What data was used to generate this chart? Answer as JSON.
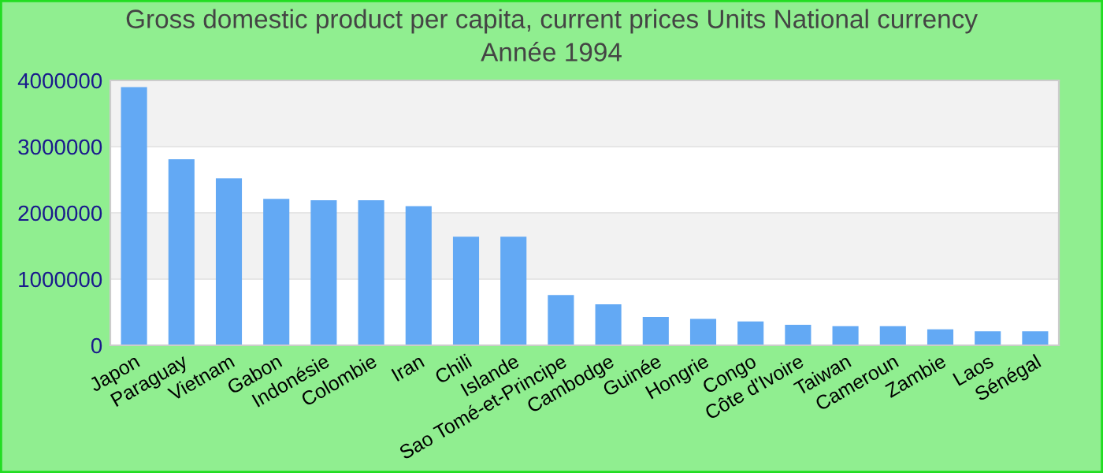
{
  "chart_data": {
    "type": "bar",
    "title": "Gross domestic product per capita, current prices Units National currency",
    "subtitle": "Année 1994",
    "categories": [
      "Japon",
      "Paraguay",
      "Vietnam",
      "Gabon",
      "Indonésie",
      "Colombie",
      "Iran",
      "Chili",
      "Islande",
      "Sao Tomé-et-Principe",
      "Cambodge",
      "Guinée",
      "Hongrie",
      "Congo",
      "Côte d'Ivoire",
      "Taiwan",
      "Cameroun",
      "Zambie",
      "Laos",
      "Sénégal"
    ],
    "values": [
      3900000,
      2810000,
      2520000,
      2210000,
      2190000,
      2190000,
      2100000,
      1640000,
      1640000,
      760000,
      620000,
      430000,
      400000,
      360000,
      310000,
      290000,
      290000,
      240000,
      210000,
      210000
    ],
    "color": "#63a9f4",
    "ylim": [
      0,
      4000000
    ],
    "yticks": [
      0,
      1000000,
      2000000,
      3000000,
      4000000
    ],
    "grid": "y"
  }
}
